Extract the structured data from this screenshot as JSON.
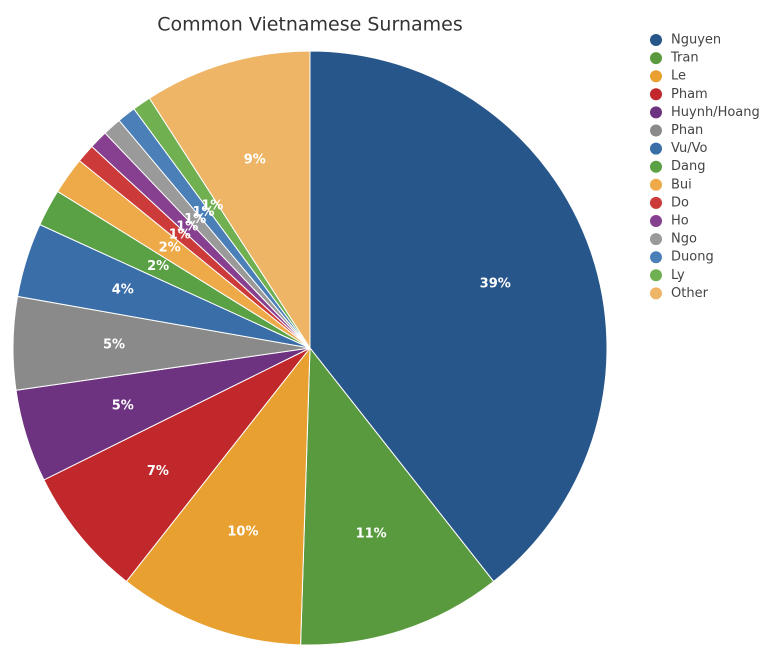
{
  "chart_data": {
    "type": "pie",
    "title": "Common Vietnamese Surnames",
    "categories": [
      "Nguyen",
      "Tran",
      "Le",
      "Pham",
      "Huynh/Hoang",
      "Phan",
      "Vu/Vo",
      "Dang",
      "Bui",
      "Do",
      "Ho",
      "Ngo",
      "Duong",
      "Ly",
      "Other"
    ],
    "values": [
      39,
      11,
      10,
      7,
      5,
      5,
      4,
      2,
      2,
      1,
      1,
      1,
      1,
      1,
      9
    ],
    "value_labels": [
      "39%",
      "11%",
      "10%",
      "7%",
      "5%",
      "5%",
      "4%",
      "2%",
      "2%",
      "1%",
      "1%",
      "1%",
      "1%",
      "1%",
      "9%"
    ],
    "colors": [
      "#27568b",
      "#5a9a3f",
      "#e8a030",
      "#c0282b",
      "#6e3380",
      "#8a8a8a",
      "#3a6ea8",
      "#5aa044",
      "#eeaa48",
      "#cc3a3a",
      "#87408f",
      "#9a9a9a",
      "#4a7fb8",
      "#70b050",
      "#eeb566"
    ],
    "legend": "right"
  }
}
